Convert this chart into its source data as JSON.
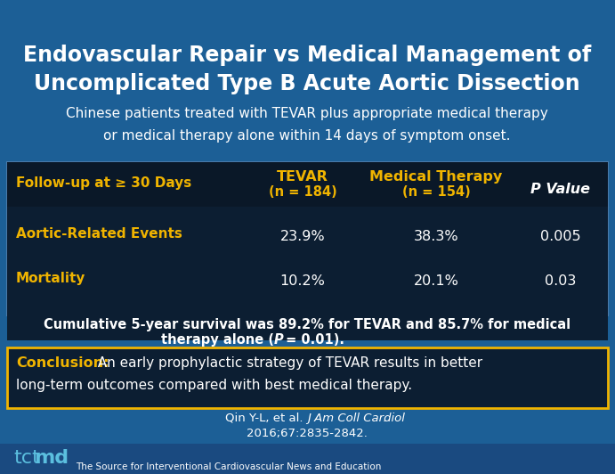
{
  "title_line1": "Endovascular Repair vs Medical Management of",
  "title_line2": "Uncomplicated Type B Acute Aortic Dissection",
  "subtitle_line1": "Chinese patients treated with TEVAR plus appropriate medical therapy",
  "subtitle_line2": "or medical therapy alone within 14 days of symptom onset.",
  "bg_blue": "#1c5f96",
  "bg_dark": "#0c1e32",
  "bg_mid": "#163a5e",
  "yellow": "#f0b400",
  "white": "#ffffff",
  "tct_blue": "#5bbfdf",
  "header_followup": "Follow-up at ≥ 30 Days",
  "header_tevar": "TEVAR",
  "header_tevar_n": "(n = 184)",
  "header_med": "Medical Therapy",
  "header_med_n": "(n = 154)",
  "header_pval": "P Value",
  "row1_label": "Aortic-Related Events",
  "row1_tevar": "23.9%",
  "row1_med": "38.3%",
  "row1_p": "0.005",
  "row2_label": "Mortality",
  "row2_tevar": "10.2%",
  "row2_med": "20.1%",
  "row2_p": "0.03",
  "surv1": "Cumulative 5-year survival was 89.2% for TEVAR and 85.7% for medical",
  "surv2a": "therapy alone (",
  "surv2b": "P",
  "surv2c": " = 0.01).",
  "conc_label": "Conclusion:",
  "conc_line1": "  An early prophylactic strategy of TEVAR results in better",
  "conc_line2": "long-term outcomes compared with best medical therapy.",
  "cite1a": "Qin Y-L, et al. ",
  "cite1b": "J Am Coll Cardiol",
  "cite1c": ".",
  "cite2": "2016;67:2835-2842.",
  "footer_tag": "The Source for Interventional Cardiovascular News and Education",
  "tct_t": "tct",
  "tct_md": "md"
}
